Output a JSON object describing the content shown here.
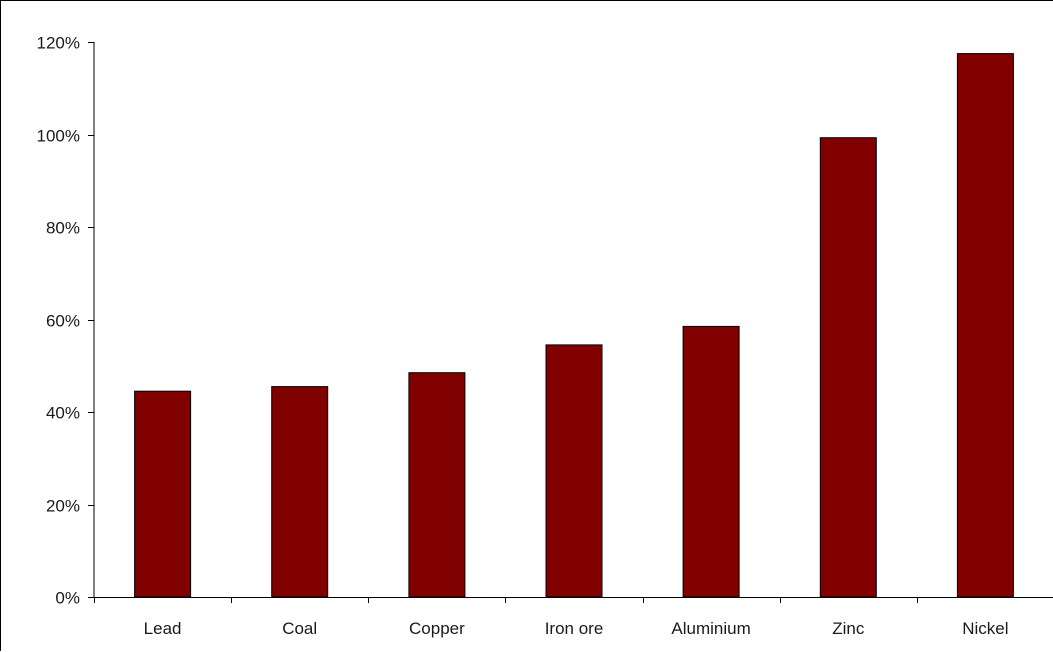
{
  "chart_data": {
    "type": "bar",
    "title": "",
    "xlabel": "",
    "ylabel": "",
    "categories": [
      "Lead",
      "Coal",
      "Copper",
      "Iron ore",
      "Aluminium",
      "Zinc",
      "Nickel"
    ],
    "values": [
      44.5,
      45.5,
      48.5,
      54.5,
      58.5,
      99.3,
      117.5
    ],
    "ylim": [
      0,
      120
    ],
    "yticks": [
      0,
      20,
      40,
      60,
      80,
      100,
      120
    ],
    "ytick_labels": [
      "0%",
      "20%",
      "40%",
      "60%",
      "80%",
      "100%",
      "120%"
    ],
    "bar_color": "#800000",
    "bar_edge_color": "#000000",
    "grid": false,
    "legend": "none"
  }
}
